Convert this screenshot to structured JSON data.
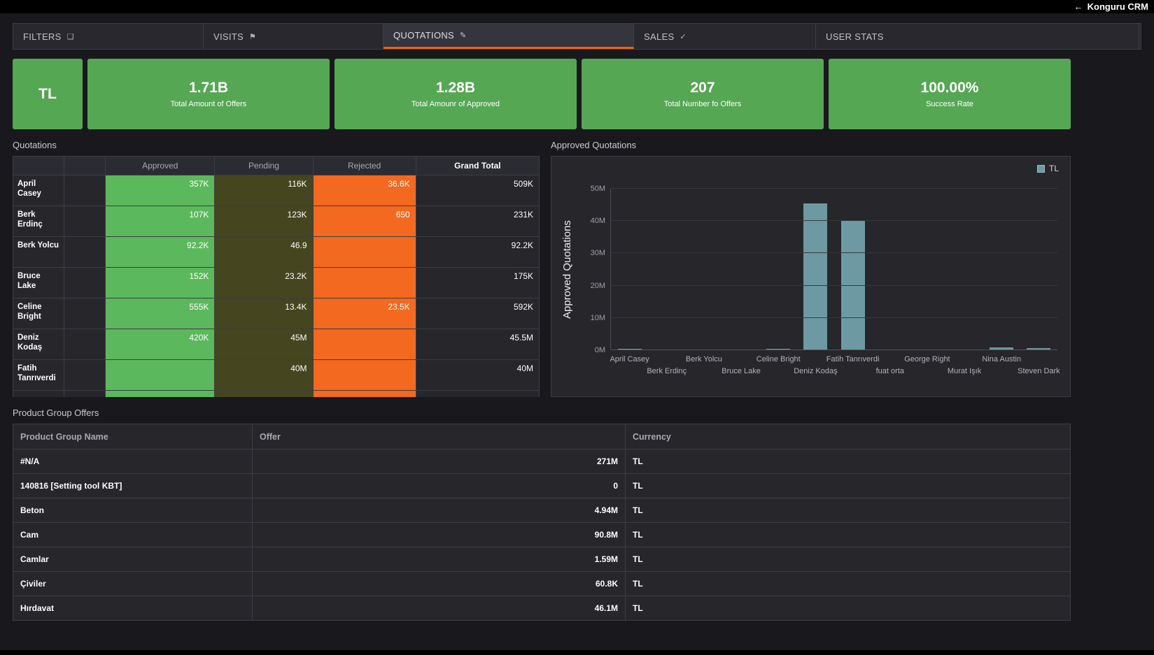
{
  "topbar": {
    "back_icon": "←",
    "title": "Konguru CRM"
  },
  "tabs": [
    {
      "label": "FILTERS",
      "icon": "filter-icon",
      "glyph": "❏",
      "active": false
    },
    {
      "label": "VISITS",
      "icon": "flag-icon",
      "glyph": "⚑",
      "active": false
    },
    {
      "label": "QUOTATIONS",
      "icon": "pencil-icon",
      "glyph": "✎",
      "active": true
    },
    {
      "label": "SALES",
      "icon": "check-icon",
      "glyph": "✓",
      "active": false
    },
    {
      "label": "USER STATS",
      "icon": "",
      "glyph": "",
      "active": false
    }
  ],
  "kpis": [
    {
      "value": "TL",
      "label": ""
    },
    {
      "value": "1.71B",
      "label": "Total Amount of Offers"
    },
    {
      "value": "1.28B",
      "label": "Total Amounr of Approved"
    },
    {
      "value": "207",
      "label": "Total Number fo Offers"
    },
    {
      "value": "100.00%",
      "label": "Success Rate"
    }
  ],
  "quotations": {
    "title": "Quotations",
    "headers": [
      "",
      "",
      "Approved",
      "Pending",
      "Rejected",
      "Grand Total"
    ],
    "rows": [
      {
        "name": "April Casey",
        "approved": "357K",
        "pending": "116K",
        "rejected": "36.6K",
        "grand_total": "509K"
      },
      {
        "name": "Berk Erdinç",
        "approved": "107K",
        "pending": "123K",
        "rejected": "650",
        "grand_total": "231K"
      },
      {
        "name": "Berk Yolcu",
        "approved": "92.2K",
        "pending": "46.9",
        "rejected": "",
        "grand_total": "92.2K"
      },
      {
        "name": "Bruce Lake",
        "approved": "152K",
        "pending": "23.2K",
        "rejected": "",
        "grand_total": "175K"
      },
      {
        "name": "Celine Bright",
        "approved": "555K",
        "pending": "13.4K",
        "rejected": "23.5K",
        "grand_total": "592K"
      },
      {
        "name": "Deniz Kodaş",
        "approved": "420K",
        "pending": "45M",
        "rejected": "",
        "grand_total": "45.5M"
      },
      {
        "name": "Fatih Tanrıverdi",
        "approved": "",
        "pending": "40M",
        "rejected": "",
        "grand_total": "40M"
      }
    ]
  },
  "chart_data": {
    "type": "bar",
    "title": "Approved Quotations",
    "ylabel": "Approved Quotations",
    "unit": "M",
    "legend": [
      {
        "name": "TL",
        "color": "#6d9aa2"
      }
    ],
    "categories": [
      "April Casey",
      "Berk Erdinç",
      "Berk Yolcu",
      "Bruce Lake",
      "Celine Bright",
      "Deniz Kodaş",
      "Fatih Tanrıverdi",
      "fuat orta",
      "George Right",
      "Murat Işık",
      "Nina Austin",
      "Steven Dark"
    ],
    "values": [
      0.5,
      0.1,
      0,
      0.05,
      0.4,
      45.5,
      40,
      0,
      0.25,
      0.1,
      0.8,
      0.6
    ],
    "ylim": [
      0,
      50
    ],
    "yticks": [
      "0M",
      "10M",
      "20M",
      "30M",
      "40M",
      "50M"
    ],
    "grid": true,
    "legend_position": "top-right"
  },
  "product_groups": {
    "title": "Product Group Offers",
    "headers": [
      "Product Group Name",
      "Offer",
      "Currency"
    ],
    "rows": [
      {
        "name": "#N/A",
        "offer": "271M",
        "currency": "TL"
      },
      {
        "name": "140816 [Setting tool KBT]",
        "offer": "0",
        "currency": "TL"
      },
      {
        "name": "Beton",
        "offer": "4.94M",
        "currency": "TL"
      },
      {
        "name": "Cam",
        "offer": "90.8M",
        "currency": "TL"
      },
      {
        "name": "Camlar",
        "offer": "1.59M",
        "currency": "TL"
      },
      {
        "name": "Çiviler",
        "offer": "60.8K",
        "currency": "TL"
      },
      {
        "name": "Hırdavat",
        "offer": "46.1M",
        "currency": "TL"
      }
    ]
  },
  "colors": {
    "accent_orange": "#e8631c",
    "kpi_green": "#56a754",
    "cell_green": "#5cb85c",
    "cell_olive": "#45451f",
    "cell_orange": "#f2691f",
    "bar_teal": "#6d9aa2"
  }
}
